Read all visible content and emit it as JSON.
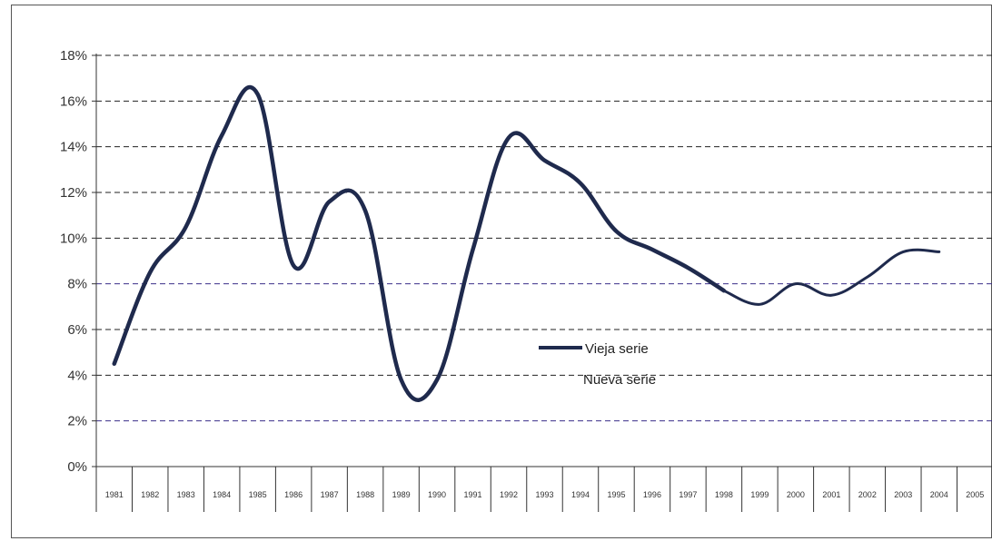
{
  "chart_data": {
    "type": "line",
    "title": "",
    "xlabel": "",
    "ylabel": "",
    "ylim": [
      0,
      18
    ],
    "y_ticks": [
      "0%",
      "2%",
      "4%",
      "6%",
      "8%",
      "10%",
      "12%",
      "14%",
      "16%",
      "18%"
    ],
    "y_tick_values": [
      0,
      2,
      4,
      6,
      8,
      10,
      12,
      14,
      16,
      18
    ],
    "x": [
      1981,
      1982,
      1983,
      1984,
      1985,
      1986,
      1987,
      1988,
      1989,
      1990,
      1991,
      1992,
      1993,
      1994,
      1995,
      1996,
      1997,
      1998,
      1999,
      2000,
      2001,
      2002,
      2003,
      2004,
      2005
    ],
    "x_tick_labels": [
      "1981",
      "1982",
      "1983",
      "1984",
      "1985",
      "1986",
      "1987",
      "1988",
      "1989",
      "1990",
      "1991",
      "1992",
      "1993",
      "1994",
      "1995",
      "1996",
      "1997",
      "1998",
      "1999",
      "2000",
      "2001",
      "2002",
      "2003",
      "2004",
      "2005"
    ],
    "grid": "horizontal dashed",
    "legend_placement": "center-right",
    "series": [
      {
        "name": "Vieja serie",
        "color": "#1f2a4d",
        "style": "solid thick",
        "x": [
          1981,
          1982,
          1983,
          1984,
          1985,
          1986,
          1987,
          1988,
          1989,
          1990,
          1991,
          1992,
          1993,
          1994,
          1995,
          1996,
          1997,
          1998
        ],
        "values": [
          4.5,
          8.5,
          10.5,
          14.5,
          16.3,
          8.8,
          11.6,
          11.2,
          3.8,
          3.8,
          9.5,
          14.4,
          13.4,
          12.4,
          10.3,
          9.5,
          8.7,
          7.7
        ]
      },
      {
        "name": "Nueva serie",
        "color": "#1f2a4d",
        "style": "solid thin",
        "x": [
          1998,
          1999,
          2000,
          2001,
          2002,
          2003,
          2004
        ],
        "values": [
          7.7,
          7.1,
          8.0,
          7.5,
          8.3,
          9.4,
          9.4
        ]
      }
    ]
  }
}
